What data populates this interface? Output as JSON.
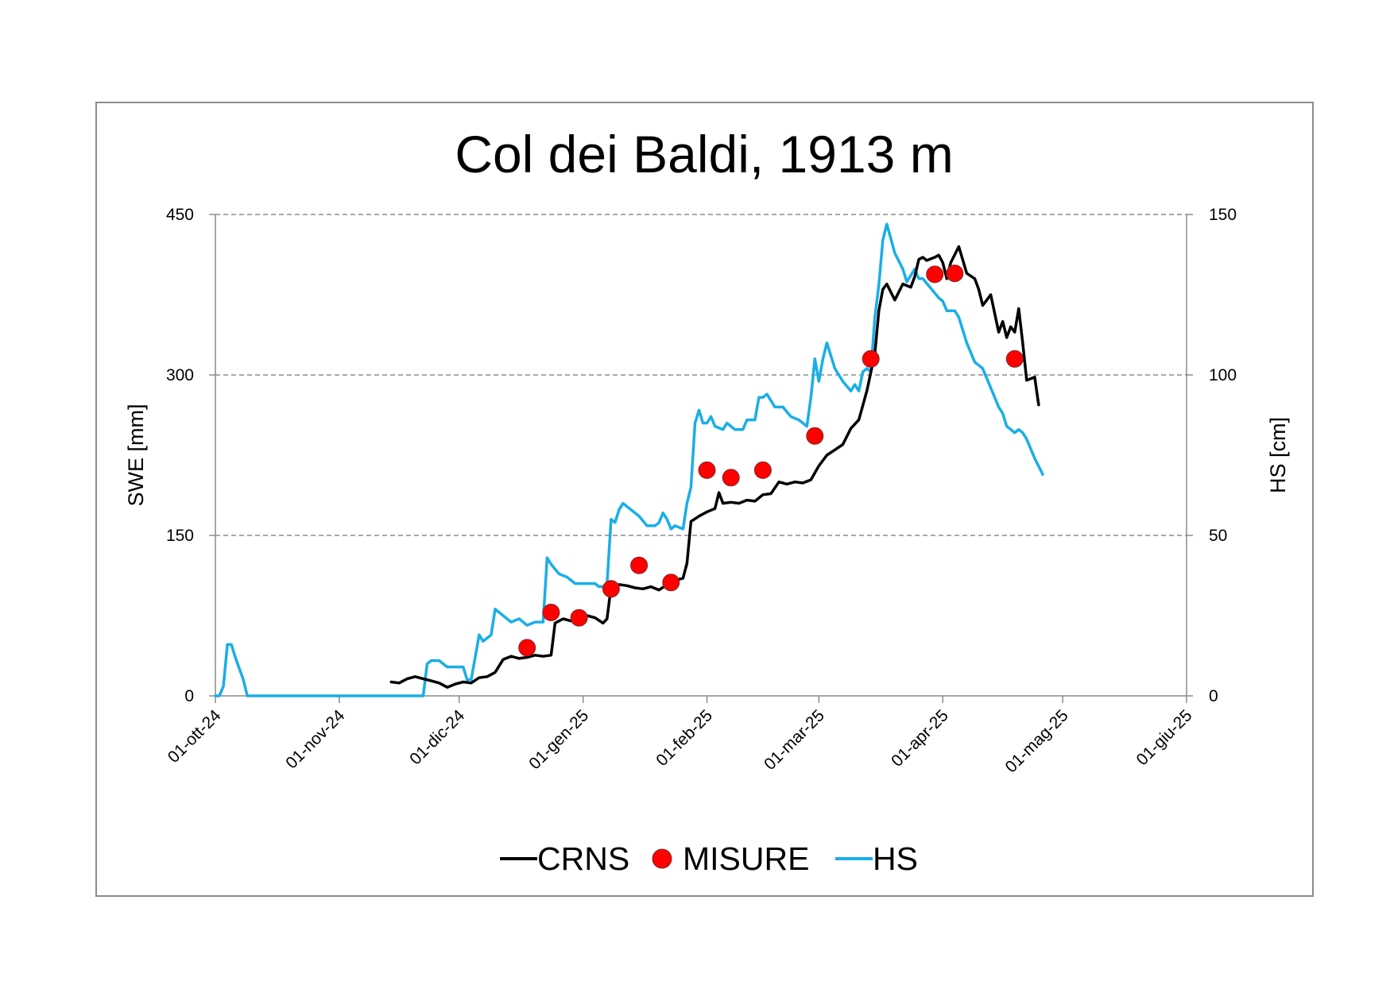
{
  "chart_data": {
    "type": "line",
    "title": "Col dei Baldi, 1913 m",
    "xlabel": "",
    "ylabel": "SWE [mm]",
    "y2label": "HS [cm]",
    "ylim": [
      0,
      450
    ],
    "y2lim": [
      0,
      150
    ],
    "xlim": [
      "2024-10-01",
      "2025-06-01"
    ],
    "x_ticks": [
      {
        "date": "2024-10-01",
        "label": "01-ott-24"
      },
      {
        "date": "2024-11-01",
        "label": "01-nov-24"
      },
      {
        "date": "2024-12-01",
        "label": "01-dic-24"
      },
      {
        "date": "2025-01-01",
        "label": "01-gen-25"
      },
      {
        "date": "2025-02-01",
        "label": "01-feb-25"
      },
      {
        "date": "2025-03-01",
        "label": "01-mar-25"
      },
      {
        "date": "2025-04-01",
        "label": "01-apr-25"
      },
      {
        "date": "2025-05-01",
        "label": "01-mag-25"
      },
      {
        "date": "2025-06-01",
        "label": "01-giu-25"
      }
    ],
    "y_ticks": [
      0,
      150,
      300,
      450
    ],
    "y2_ticks": [
      0,
      50,
      100,
      150
    ],
    "grid": "horizontal dashed",
    "legend_position": "bottom",
    "series": [
      {
        "name": "CRNS",
        "axis": "left",
        "color": "#000000",
        "style": "line",
        "points": [
          [
            "2024-11-14",
            13
          ],
          [
            "2024-11-16",
            12
          ],
          [
            "2024-11-18",
            16
          ],
          [
            "2024-11-20",
            18
          ],
          [
            "2024-11-22",
            16
          ],
          [
            "2024-11-24",
            14
          ],
          [
            "2024-11-26",
            12
          ],
          [
            "2024-11-28",
            8
          ],
          [
            "2024-11-30",
            11
          ],
          [
            "2024-12-02",
            13
          ],
          [
            "2024-12-04",
            12
          ],
          [
            "2024-12-06",
            17
          ],
          [
            "2024-12-08",
            18
          ],
          [
            "2024-12-10",
            22
          ],
          [
            "2024-12-12",
            34
          ],
          [
            "2024-12-14",
            37
          ],
          [
            "2024-12-16",
            35
          ],
          [
            "2024-12-18",
            36
          ],
          [
            "2024-12-20",
            38
          ],
          [
            "2024-12-22",
            37
          ],
          [
            "2024-12-24",
            38
          ],
          [
            "2024-12-25",
            68
          ],
          [
            "2024-12-27",
            72
          ],
          [
            "2024-12-29",
            70
          ],
          [
            "2024-12-31",
            71
          ],
          [
            "2025-01-02",
            75
          ],
          [
            "2025-01-04",
            73
          ],
          [
            "2025-01-06",
            68
          ],
          [
            "2025-01-07",
            72
          ],
          [
            "2025-01-08",
            102
          ],
          [
            "2025-01-10",
            104
          ],
          [
            "2025-01-12",
            103
          ],
          [
            "2025-01-14",
            101
          ],
          [
            "2025-01-16",
            100
          ],
          [
            "2025-01-18",
            102
          ],
          [
            "2025-01-20",
            99
          ],
          [
            "2025-01-22",
            104
          ],
          [
            "2025-01-24",
            108
          ],
          [
            "2025-01-26",
            110
          ],
          [
            "2025-01-27",
            124
          ],
          [
            "2025-01-28",
            163
          ],
          [
            "2025-01-30",
            168
          ],
          [
            "2025-02-01",
            172
          ],
          [
            "2025-02-03",
            175
          ],
          [
            "2025-02-04",
            190
          ],
          [
            "2025-02-05",
            180
          ],
          [
            "2025-02-07",
            181
          ],
          [
            "2025-02-09",
            180
          ],
          [
            "2025-02-11",
            183
          ],
          [
            "2025-02-13",
            182
          ],
          [
            "2025-02-15",
            188
          ],
          [
            "2025-02-17",
            189
          ],
          [
            "2025-02-19",
            200
          ],
          [
            "2025-02-21",
            198
          ],
          [
            "2025-02-23",
            200
          ],
          [
            "2025-02-25",
            199
          ],
          [
            "2025-02-27",
            202
          ],
          [
            "2025-03-01",
            215
          ],
          [
            "2025-03-03",
            225
          ],
          [
            "2025-03-05",
            230
          ],
          [
            "2025-03-07",
            235
          ],
          [
            "2025-03-09",
            250
          ],
          [
            "2025-03-11",
            258
          ],
          [
            "2025-03-13",
            285
          ],
          [
            "2025-03-15",
            320
          ],
          [
            "2025-03-16",
            360
          ],
          [
            "2025-03-17",
            380
          ],
          [
            "2025-03-18",
            385
          ],
          [
            "2025-03-20",
            370
          ],
          [
            "2025-03-22",
            385
          ],
          [
            "2025-03-24",
            382
          ],
          [
            "2025-03-25",
            392
          ],
          [
            "2025-03-26",
            408
          ],
          [
            "2025-03-27",
            410
          ],
          [
            "2025-03-28",
            407
          ],
          [
            "2025-03-30",
            410
          ],
          [
            "2025-03-31",
            412
          ],
          [
            "2025-04-01",
            405
          ],
          [
            "2025-04-02",
            390
          ],
          [
            "2025-04-03",
            405
          ],
          [
            "2025-04-05",
            420
          ],
          [
            "2025-04-07",
            395
          ],
          [
            "2025-04-09",
            390
          ],
          [
            "2025-04-10",
            380
          ],
          [
            "2025-04-11",
            365
          ],
          [
            "2025-04-13",
            375
          ],
          [
            "2025-04-15",
            340
          ],
          [
            "2025-04-16",
            350
          ],
          [
            "2025-04-17",
            335
          ],
          [
            "2025-04-18",
            345
          ],
          [
            "2025-04-19",
            340
          ],
          [
            "2025-04-20",
            362
          ],
          [
            "2025-04-21",
            330
          ],
          [
            "2025-04-22",
            295
          ],
          [
            "2025-04-24",
            298
          ],
          [
            "2025-04-25",
            272
          ]
        ]
      },
      {
        "name": "MISURE",
        "axis": "left",
        "color": "#ff0000",
        "style": "markers",
        "points": [
          [
            "2024-12-18",
            45
          ],
          [
            "2024-12-24",
            78
          ],
          [
            "2024-12-31",
            73
          ],
          [
            "2025-01-08",
            100
          ],
          [
            "2025-01-15",
            122
          ],
          [
            "2025-01-23",
            106
          ],
          [
            "2025-02-01",
            211
          ],
          [
            "2025-02-07",
            204
          ],
          [
            "2025-02-15",
            211
          ],
          [
            "2025-02-28",
            243
          ],
          [
            "2025-03-14",
            315
          ],
          [
            "2025-03-30",
            394
          ],
          [
            "2025-04-04",
            395
          ],
          [
            "2025-04-19",
            315
          ]
        ]
      },
      {
        "name": "HS",
        "axis": "right",
        "color": "#1aaee6",
        "style": "line",
        "points": [
          [
            "2024-10-01",
            0
          ],
          [
            "2024-10-02",
            0
          ],
          [
            "2024-10-03",
            3
          ],
          [
            "2024-10-04",
            16
          ],
          [
            "2024-10-05",
            16
          ],
          [
            "2024-10-06",
            12
          ],
          [
            "2024-10-08",
            5
          ],
          [
            "2024-10-09",
            0
          ],
          [
            "2024-11-22",
            0
          ],
          [
            "2024-11-23",
            10
          ],
          [
            "2024-11-24",
            11
          ],
          [
            "2024-11-26",
            11
          ],
          [
            "2024-11-28",
            9
          ],
          [
            "2024-12-02",
            9
          ],
          [
            "2024-12-03",
            5
          ],
          [
            "2024-12-04",
            5
          ],
          [
            "2024-12-05",
            12
          ],
          [
            "2024-12-06",
            19
          ],
          [
            "2024-12-07",
            17
          ],
          [
            "2024-12-09",
            19
          ],
          [
            "2024-12-10",
            27
          ],
          [
            "2024-12-12",
            25
          ],
          [
            "2024-12-14",
            23
          ],
          [
            "2024-12-16",
            24
          ],
          [
            "2024-12-18",
            22
          ],
          [
            "2024-12-20",
            23
          ],
          [
            "2024-12-22",
            23
          ],
          [
            "2024-12-23",
            43
          ],
          [
            "2024-12-24",
            41
          ],
          [
            "2024-12-26",
            38
          ],
          [
            "2024-12-28",
            37
          ],
          [
            "2024-12-30",
            35
          ],
          [
            "2025-01-01",
            35
          ],
          [
            "2025-01-03",
            35
          ],
          [
            "2025-01-04",
            35
          ],
          [
            "2025-01-05",
            34
          ],
          [
            "2025-01-06",
            34
          ],
          [
            "2025-01-07",
            35
          ],
          [
            "2025-01-08",
            55
          ],
          [
            "2025-01-09",
            54
          ],
          [
            "2025-01-10",
            58
          ],
          [
            "2025-01-11",
            60
          ],
          [
            "2025-01-13",
            58
          ],
          [
            "2025-01-15",
            56
          ],
          [
            "2025-01-17",
            53
          ],
          [
            "2025-01-19",
            53
          ],
          [
            "2025-01-20",
            54
          ],
          [
            "2025-01-21",
            57
          ],
          [
            "2025-01-22",
            55
          ],
          [
            "2025-01-23",
            52
          ],
          [
            "2025-01-24",
            53
          ],
          [
            "2025-01-26",
            52
          ],
          [
            "2025-01-27",
            60
          ],
          [
            "2025-01-28",
            65
          ],
          [
            "2025-01-29",
            85
          ],
          [
            "2025-01-30",
            89
          ],
          [
            "2025-01-31",
            85
          ],
          [
            "2025-02-01",
            85
          ],
          [
            "2025-02-02",
            87
          ],
          [
            "2025-02-03",
            84
          ],
          [
            "2025-02-05",
            83
          ],
          [
            "2025-02-06",
            85
          ],
          [
            "2025-02-08",
            83
          ],
          [
            "2025-02-10",
            83
          ],
          [
            "2025-02-11",
            86
          ],
          [
            "2025-02-13",
            86
          ],
          [
            "2025-02-14",
            93
          ],
          [
            "2025-02-15",
            93
          ],
          [
            "2025-02-16",
            94
          ],
          [
            "2025-02-18",
            90
          ],
          [
            "2025-02-20",
            90
          ],
          [
            "2025-02-22",
            87
          ],
          [
            "2025-02-24",
            86
          ],
          [
            "2025-02-26",
            84
          ],
          [
            "2025-02-27",
            93
          ],
          [
            "2025-02-28",
            105
          ],
          [
            "2025-03-01",
            98
          ],
          [
            "2025-03-02",
            105
          ],
          [
            "2025-03-03",
            110
          ],
          [
            "2025-03-05",
            102
          ],
          [
            "2025-03-07",
            98
          ],
          [
            "2025-03-09",
            95
          ],
          [
            "2025-03-10",
            97
          ],
          [
            "2025-03-11",
            95
          ],
          [
            "2025-03-12",
            101
          ],
          [
            "2025-03-13",
            102
          ],
          [
            "2025-03-14",
            101
          ],
          [
            "2025-03-15",
            118
          ],
          [
            "2025-03-16",
            128
          ],
          [
            "2025-03-17",
            142
          ],
          [
            "2025-03-18",
            147
          ],
          [
            "2025-03-20",
            138
          ],
          [
            "2025-03-22",
            133
          ],
          [
            "2025-03-23",
            129
          ],
          [
            "2025-03-24",
            131
          ],
          [
            "2025-03-25",
            133
          ],
          [
            "2025-03-26",
            130
          ],
          [
            "2025-03-27",
            130
          ],
          [
            "2025-03-29",
            127
          ],
          [
            "2025-03-31",
            124
          ],
          [
            "2025-04-01",
            123
          ],
          [
            "2025-04-02",
            120
          ],
          [
            "2025-04-04",
            120
          ],
          [
            "2025-04-05",
            118
          ],
          [
            "2025-04-07",
            110
          ],
          [
            "2025-04-09",
            104
          ],
          [
            "2025-04-11",
            102
          ],
          [
            "2025-04-13",
            96
          ],
          [
            "2025-04-15",
            90
          ],
          [
            "2025-04-16",
            88
          ],
          [
            "2025-04-17",
            84
          ],
          [
            "2025-04-19",
            82
          ],
          [
            "2025-04-20",
            83
          ],
          [
            "2025-04-21",
            82
          ],
          [
            "2025-04-22",
            80
          ],
          [
            "2025-04-24",
            74
          ],
          [
            "2025-04-26",
            69
          ]
        ]
      }
    ]
  }
}
